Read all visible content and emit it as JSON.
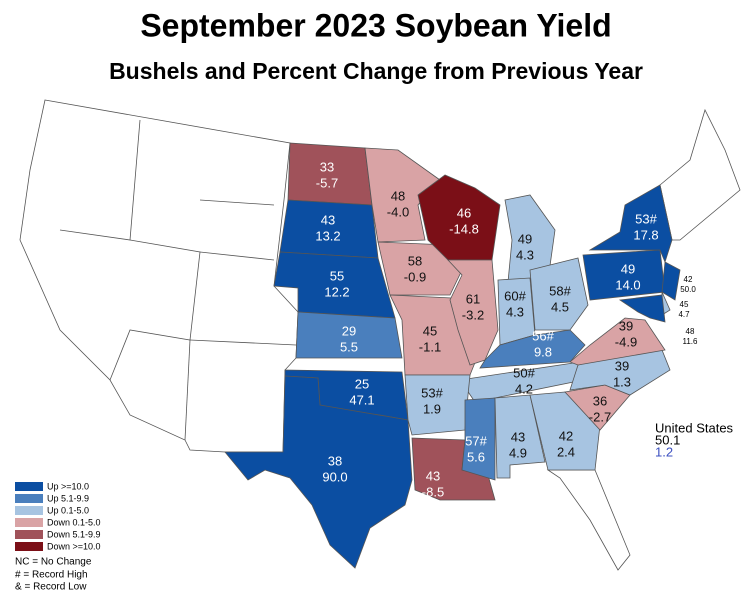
{
  "header": {
    "title": "September 2023 Soybean Yield",
    "subtitle": "Bushels and Percent Change from Previous Year"
  },
  "legend": [
    {
      "label": "Up >=10.0",
      "color": "#0b4ea2"
    },
    {
      "label": "Up 5.1-9.9",
      "color": "#4a7fbd"
    },
    {
      "label": "Up 0.1-5.0",
      "color": "#a7c4e1"
    },
    {
      "label": "Down 0.1-5.0",
      "color": "#d9a3a5"
    },
    {
      "label": "Down 5.1-9.9",
      "color": "#a0525a"
    },
    {
      "label": "Down >=10.0",
      "color": "#7b0f17"
    }
  ],
  "notes": [
    "NC = No Change",
    "# = Record High",
    "& = Record Low"
  ],
  "national": {
    "label": "United States",
    "yield": "50.1",
    "change": "1.2",
    "change_color": "#3b4fc0"
  },
  "states": [
    {
      "yield": "33",
      "change": "-5.7",
      "color": "#a0525a"
    },
    {
      "yield": "43",
      "change": "13.2",
      "color": "#0b4ea2"
    },
    {
      "yield": "55",
      "change": "12.2",
      "color": "#0b4ea2"
    },
    {
      "yield": "29",
      "change": "5.5",
      "color": "#4a7fbd"
    },
    {
      "yield": "25",
      "change": "47.1",
      "color": "#0b4ea2"
    },
    {
      "yield": "38",
      "change": "90.0",
      "color": "#0b4ea2"
    },
    {
      "yield": "48",
      "change": "-4.0",
      "color": "#d9a3a5"
    },
    {
      "yield": "58",
      "change": "-0.9",
      "color": "#d9a3a5"
    },
    {
      "yield": "45",
      "change": "-1.1",
      "color": "#d9a3a5"
    },
    {
      "yield": "46",
      "change": "-14.8",
      "color": "#7b0f17"
    },
    {
      "yield": "61",
      "change": "-3.2",
      "color": "#d9a3a5"
    },
    {
      "yield": "49",
      "change": "4.3",
      "color": "#a7c4e1"
    },
    {
      "yield": "60#",
      "change": "4.3",
      "color": "#a7c4e1"
    },
    {
      "yield": "58#",
      "change": "4.5",
      "color": "#a7c4e1"
    },
    {
      "yield": "56#",
      "change": "9.8",
      "color": "#4a7fbd"
    },
    {
      "yield": "50#",
      "change": "4.2",
      "color": "#a7c4e1"
    },
    {
      "yield": "53#",
      "change": "1.9",
      "color": "#a7c4e1"
    },
    {
      "yield": "43",
      "change": "-8.5",
      "color": "#a0525a"
    },
    {
      "yield": "57#",
      "change": "5.6",
      "color": "#4a7fbd"
    },
    {
      "yield": "43",
      "change": "4.9",
      "color": "#a7c4e1"
    },
    {
      "yield": "42",
      "change": "2.4",
      "color": "#a7c4e1"
    },
    {
      "yield": "36",
      "change": "-2.7",
      "color": "#d9a3a5"
    },
    {
      "yield": "39",
      "change": "1.3",
      "color": "#a7c4e1"
    },
    {
      "yield": "39",
      "change": "-4.9",
      "color": "#d9a3a5"
    },
    {
      "yield": "49",
      "change": "14.0",
      "color": "#0b4ea2"
    },
    {
      "yield": "53#",
      "change": "17.8",
      "color": "#0b4ea2"
    },
    {
      "yield": "42",
      "change": "50.0",
      "color": "#0b4ea2"
    },
    {
      "yield": "45",
      "change": "4.7",
      "color": "#a7c4e1"
    },
    {
      "yield": "48",
      "change": "11.6",
      "color": "#0b4ea2"
    }
  ]
}
